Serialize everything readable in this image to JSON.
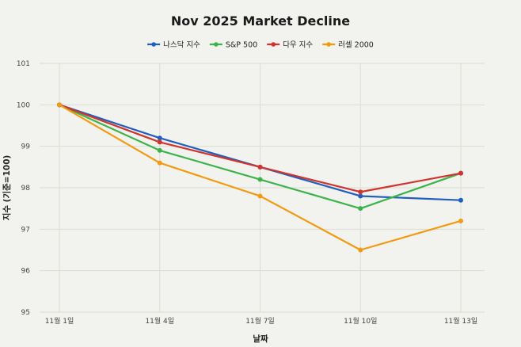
{
  "chart_data": {
    "type": "line",
    "title": "Nov 2025 Market Decline",
    "xlabel": "날짜",
    "ylabel": "지수 (기준=100)",
    "categories": [
      "11월 1일",
      "11월 4일",
      "11월 7일",
      "11월 10일",
      "11월 13일"
    ],
    "ylim": [
      95,
      101
    ],
    "yticks": [
      "95",
      "96",
      "97",
      "98",
      "99",
      "100",
      "101"
    ],
    "grid": true,
    "legend_position": "top-center",
    "series": [
      {
        "name": "나스닥 지수",
        "color": "#1f5fbf",
        "values": [
          100,
          99.2,
          98.5,
          97.8,
          97.7
        ]
      },
      {
        "name": "S&P 500",
        "color": "#3cb44b",
        "values": [
          100,
          98.9,
          98.2,
          97.5,
          98.35
        ]
      },
      {
        "name": "다우 지수",
        "color": "#d0342c",
        "values": [
          100,
          99.1,
          98.5,
          97.9,
          98.35
        ]
      },
      {
        "name": "러셀 2000",
        "color": "#f29a11",
        "values": [
          100,
          98.6,
          97.8,
          96.5,
          97.2
        ]
      }
    ]
  }
}
